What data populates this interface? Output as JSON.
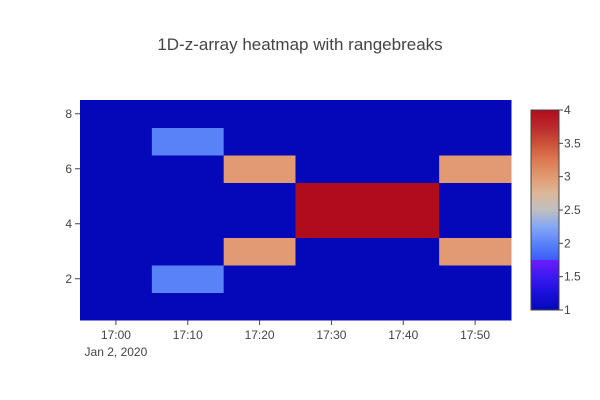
{
  "chart_data": {
    "type": "heatmap",
    "title": "1D-z-array heatmap with rangebreaks",
    "x_values": [
      "17:00",
      "17:10",
      "17:20",
      "17:30",
      "17:40",
      "17:50"
    ],
    "x_tick_labels": [
      "17:00",
      "17:10",
      "17:20",
      "17:30",
      "17:40",
      "17:50"
    ],
    "x_date_label": "Jan 2, 2020",
    "y_values": [
      1,
      2,
      3,
      4,
      5,
      6,
      7,
      8
    ],
    "y_tick_values": [
      2,
      4,
      6,
      8
    ],
    "y_tick_labels": [
      "2",
      "4",
      "6",
      "8"
    ],
    "ylim": [
      0.5,
      8.5
    ],
    "z": [
      [
        1,
        1,
        1,
        1,
        1,
        1
      ],
      [
        1,
        2,
        1,
        1,
        1,
        1
      ],
      [
        1,
        1,
        3,
        1,
        1,
        3
      ],
      [
        1,
        1,
        1,
        4,
        4,
        1
      ],
      [
        1,
        1,
        1,
        4,
        4,
        1
      ],
      [
        1,
        1,
        3,
        1,
        1,
        3
      ],
      [
        1,
        2,
        1,
        1,
        1,
        1
      ],
      [
        1,
        1,
        1,
        1,
        1,
        1
      ]
    ],
    "zlim": [
      1,
      4
    ],
    "colorbar_tick_values": [
      1,
      1.5,
      2,
      2.5,
      3,
      3.5,
      4
    ],
    "colorbar_tick_labels": [
      "1",
      "1.5",
      "2",
      "2.5",
      "3",
      "3.5",
      "4"
    ],
    "colorscale": [
      [
        0.0,
        "#0508b8"
      ],
      [
        0.083,
        "#1910d8"
      ],
      [
        0.166,
        "#3c19f0"
      ],
      [
        0.25,
        "#6b1cfb"
      ],
      [
        0.25,
        "#3b5cf8"
      ],
      [
        0.333,
        "#5a82f8"
      ],
      [
        0.416,
        "#84a7f6"
      ],
      [
        0.5,
        "#bfbfbf"
      ],
      [
        0.583,
        "#dcb79a"
      ],
      [
        0.666,
        "#e19a71"
      ],
      [
        0.75,
        "#db7a52"
      ],
      [
        0.833,
        "#cc5139"
      ],
      [
        0.916,
        "#b92a2c"
      ],
      [
        1.0,
        "#b10c1e"
      ]
    ],
    "grid": false
  }
}
